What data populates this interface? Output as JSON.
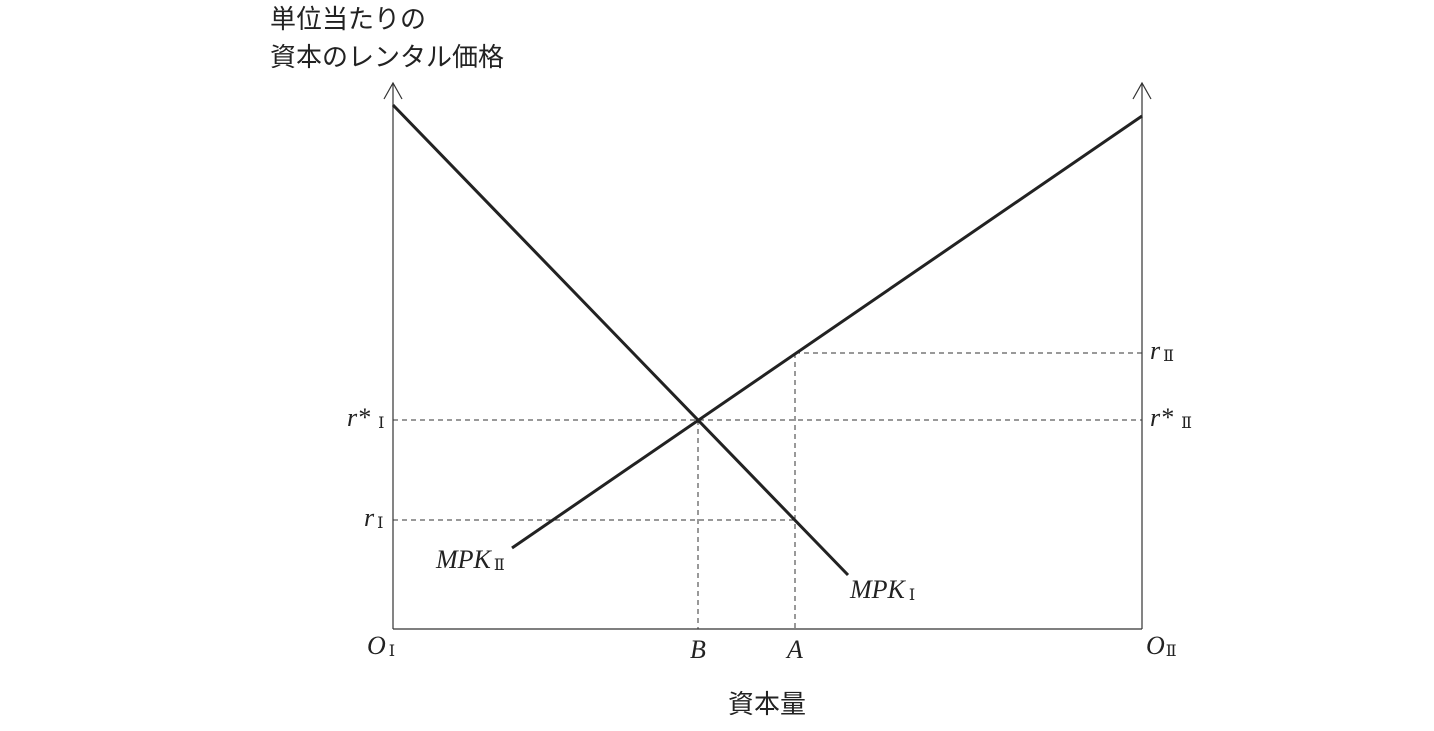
{
  "y_axis_label": [
    "単位当たりの",
    "資本のレンタル価格"
  ],
  "x_axis_label": "資本量",
  "origins": [
    {
      "main": "O",
      "sub": "Ⅰ"
    },
    {
      "main": "O",
      "sub": "Ⅱ"
    }
  ],
  "points": [
    {
      "main": "B"
    },
    {
      "main": "A"
    }
  ],
  "rates": [
    {
      "main": "r*",
      "sub": "Ⅰ"
    },
    {
      "main": "r",
      "sub": "Ⅰ"
    },
    {
      "main": "r",
      "sub": "Ⅱ"
    },
    {
      "main": "r*",
      "sub": "Ⅱ"
    }
  ],
  "curves": [
    {
      "main": "MPK",
      "sub": "Ⅰ"
    },
    {
      "main": "MPK",
      "sub": "Ⅱ"
    }
  ]
}
